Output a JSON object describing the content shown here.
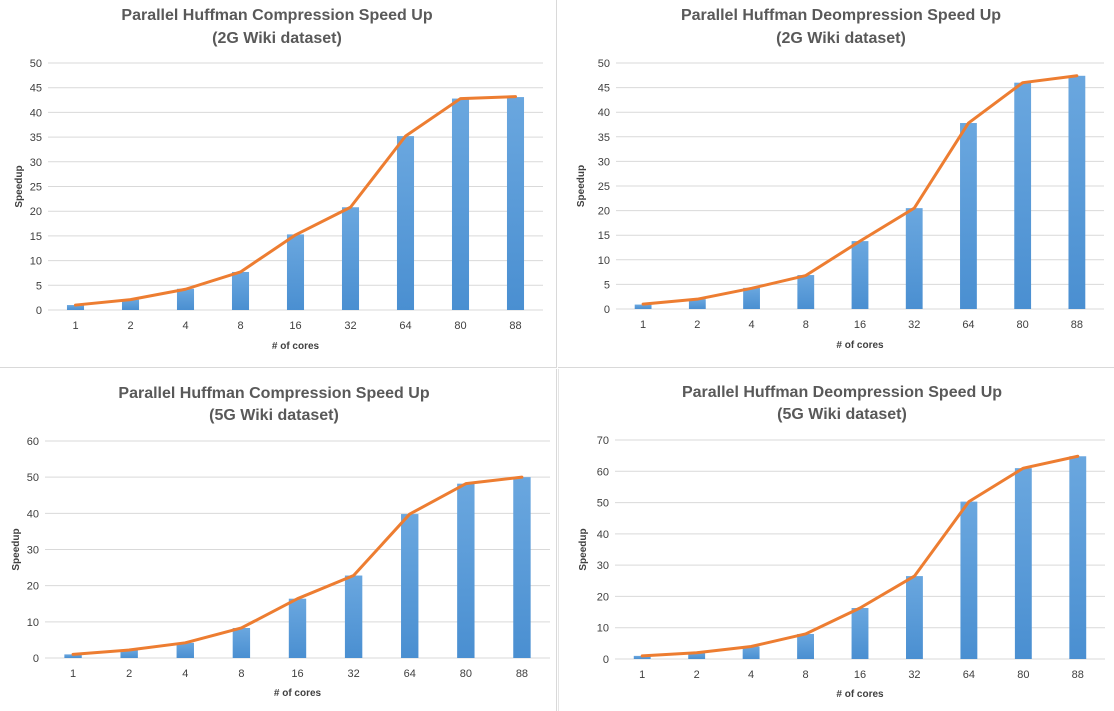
{
  "chart_data": [
    {
      "type": "bar",
      "title": "Parallel Huffman Compression Speed Up",
      "subtitle": "(2G Wiki dataset)",
      "xlabel": "# of cores",
      "ylabel": "Speedup",
      "categories": [
        "1",
        "2",
        "4",
        "8",
        "16",
        "32",
        "64",
        "80",
        "88"
      ],
      "yticks": [
        "0",
        "5",
        "10",
        "15",
        "20",
        "25",
        "30",
        "35",
        "40",
        "45",
        "50"
      ],
      "ylim": [
        0,
        50
      ],
      "series": [
        {
          "type": "bar",
          "values": [
            1,
            2.1,
            4.3,
            7.7,
            15.3,
            20.8,
            35.2,
            42.8,
            43.1
          ]
        },
        {
          "type": "line",
          "values": [
            1,
            2.1,
            4.2,
            7.7,
            15.2,
            20.8,
            35.2,
            42.8,
            43.2
          ]
        }
      ],
      "bar_color": "#4a8fd1",
      "line_color": "#ed7d31",
      "grid": true
    },
    {
      "type": "bar",
      "title": "Parallel Huffman Deompression Speed Up",
      "subtitle": "(2G Wiki dataset)",
      "xlabel": "# of cores",
      "ylabel": "Speedup",
      "categories": [
        "1",
        "2",
        "4",
        "8",
        "16",
        "32",
        "64",
        "80",
        "88"
      ],
      "yticks": [
        "0",
        "5",
        "10",
        "15",
        "20",
        "25",
        "30",
        "35",
        "40",
        "45",
        "50"
      ],
      "ylim": [
        0,
        50
      ],
      "series": [
        {
          "type": "bar",
          "values": [
            0.9,
            2,
            4.3,
            6.9,
            13.8,
            20.5,
            37.8,
            46,
            47.4
          ]
        },
        {
          "type": "line",
          "values": [
            1,
            2,
            4.2,
            6.8,
            13.8,
            20.5,
            37.8,
            46,
            47.4
          ]
        }
      ],
      "bar_color": "#4a8fd1",
      "line_color": "#ed7d31",
      "grid": true
    },
    {
      "type": "bar",
      "title": "Parallel Huffman Compression Speed Up",
      "subtitle": "(5G Wiki dataset)",
      "xlabel": "# of cores",
      "ylabel": "Speedup",
      "categories": [
        "1",
        "2",
        "4",
        "8",
        "16",
        "32",
        "64",
        "80",
        "88"
      ],
      "yticks": [
        "0",
        "10",
        "20",
        "30",
        "40",
        "50",
        "60"
      ],
      "ylim": [
        0,
        60
      ],
      "series": [
        {
          "type": "bar",
          "values": [
            1,
            2.2,
            4.2,
            8.3,
            16.4,
            22.8,
            39.8,
            48.2,
            50
          ]
        },
        {
          "type": "line",
          "values": [
            1,
            2.2,
            4.2,
            8.3,
            16.4,
            22.8,
            39.8,
            48.2,
            50
          ]
        }
      ],
      "bar_color": "#4a8fd1",
      "line_color": "#ed7d31",
      "grid": true
    },
    {
      "type": "bar",
      "title": "Parallel Huffman Deompression Speed Up",
      "subtitle": "(5G Wiki dataset)",
      "xlabel": "# of cores",
      "ylabel": "Speedup",
      "categories": [
        "1",
        "2",
        "4",
        "8",
        "16",
        "32",
        "64",
        "80",
        "88"
      ],
      "yticks": [
        "0",
        "10",
        "20",
        "30",
        "40",
        "50",
        "60",
        "70"
      ],
      "ylim": [
        0,
        70
      ],
      "series": [
        {
          "type": "bar",
          "values": [
            1,
            2,
            4,
            8,
            16.3,
            26.5,
            50.3,
            61,
            64.8
          ]
        },
        {
          "type": "line",
          "values": [
            1,
            2,
            4,
            8,
            16.3,
            26.5,
            50.3,
            61,
            64.8
          ]
        }
      ],
      "bar_color": "#4a8fd1",
      "line_color": "#ed7d31",
      "grid": true
    }
  ]
}
